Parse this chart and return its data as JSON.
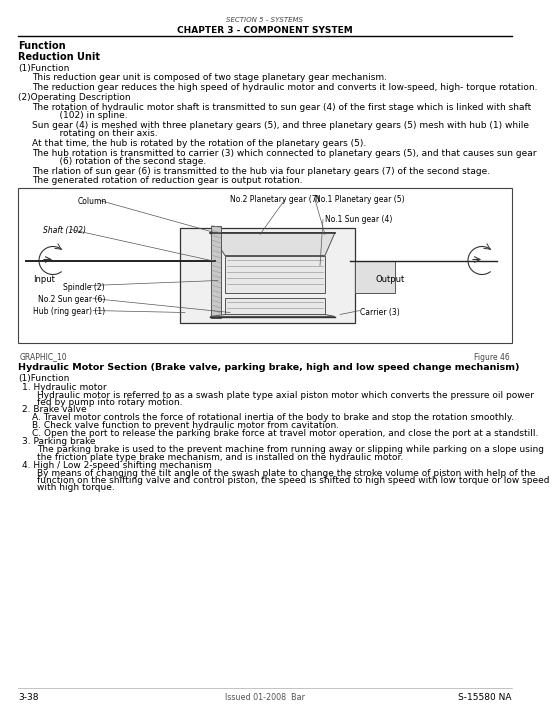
{
  "header_small": "SECTION 5 - SYSTEMS",
  "header_large": "CHAPTER 3 - COMPONENT SYSTEM",
  "section_title": "Function",
  "subsection_title": "Reduction Unit",
  "sub1_title": "(1)Function",
  "sub1_text": "This reduction gear unit is composed of two stage planetary gear mechanism.",
  "sub1_text2": "The reduction gear reduces the high speed of hydraulic motor and converts it low-speed, high- torque rotation.",
  "sub2_title": "(2)Operating Description",
  "sub2_lines": [
    [
      "The rotation of hydraulic motor shaft is transmitted to sun gear (4) of the first stage which is linked with shaft",
      "    (102) in spline."
    ],
    [
      "Sun gear (4) is meshed with three planetary gears (5), and three planetary gears (5) mesh with hub (1) while",
      "    rotating on their axis."
    ],
    [
      "At that time, the hub is rotated by the rotation of the planetary gears (5)."
    ],
    [
      "The hub rotation is transmitted to carrier (3) which connected to planetary gears (5), and that causes sun gear",
      "    (6) rotation of the second stage."
    ],
    [
      "The rlation of sun gear (6) is transmitted to the hub via four planetary gears (7) of the second stage."
    ],
    [
      "The generated rotation of reduction gear is output rotation."
    ]
  ],
  "graphic_label": "GRAPHIC_10",
  "figure_label": "Figure 46",
  "hyd_section_title": "Hydraulic Motor Section (Brake valve, parking brake, high and low speed change mechanism)",
  "hyd_sub1_title": "(1)Function",
  "hyd_items": [
    {
      "num": "1.",
      "title": "Hydraulic motor",
      "text": [
        "Hydraulic motor is referred to as a swash plate type axial piston motor which converts the pressure oil power",
        "fed by pump into rotary motion."
      ]
    },
    {
      "num": "2.",
      "title": "Brake valve",
      "subitems": [
        "A. Travel motor controls the force of rotational inertia of the body to brake and stop the rotation smoothly.",
        "B. Check valve function to prevent hydraulic motor from cavitation.",
        "C. Open the port to release the parking brake force at travel motor operation, and close the port at a standstill."
      ]
    },
    {
      "num": "3.",
      "title": "Parking brake",
      "text": [
        "The parking brake is used to the prevent machine from running away or slipping while parking on a slope using",
        "the friction plate type brake mechanism, and is installed on the hydraulic motor."
      ]
    },
    {
      "num": "4.",
      "title": "High / Low 2-speed shifting mechanism",
      "text": [
        "By means of changing the tilt angle of the swash plate to change the stroke volume of piston with help of the",
        "function on the shifting valve and control piston, the speed is shifted to high speed with low torque or low speed",
        "with high torque."
      ]
    }
  ],
  "footer_left": "3-38",
  "footer_center": "Issued 01-2008  Bar",
  "footer_right": "S-15580 NA"
}
